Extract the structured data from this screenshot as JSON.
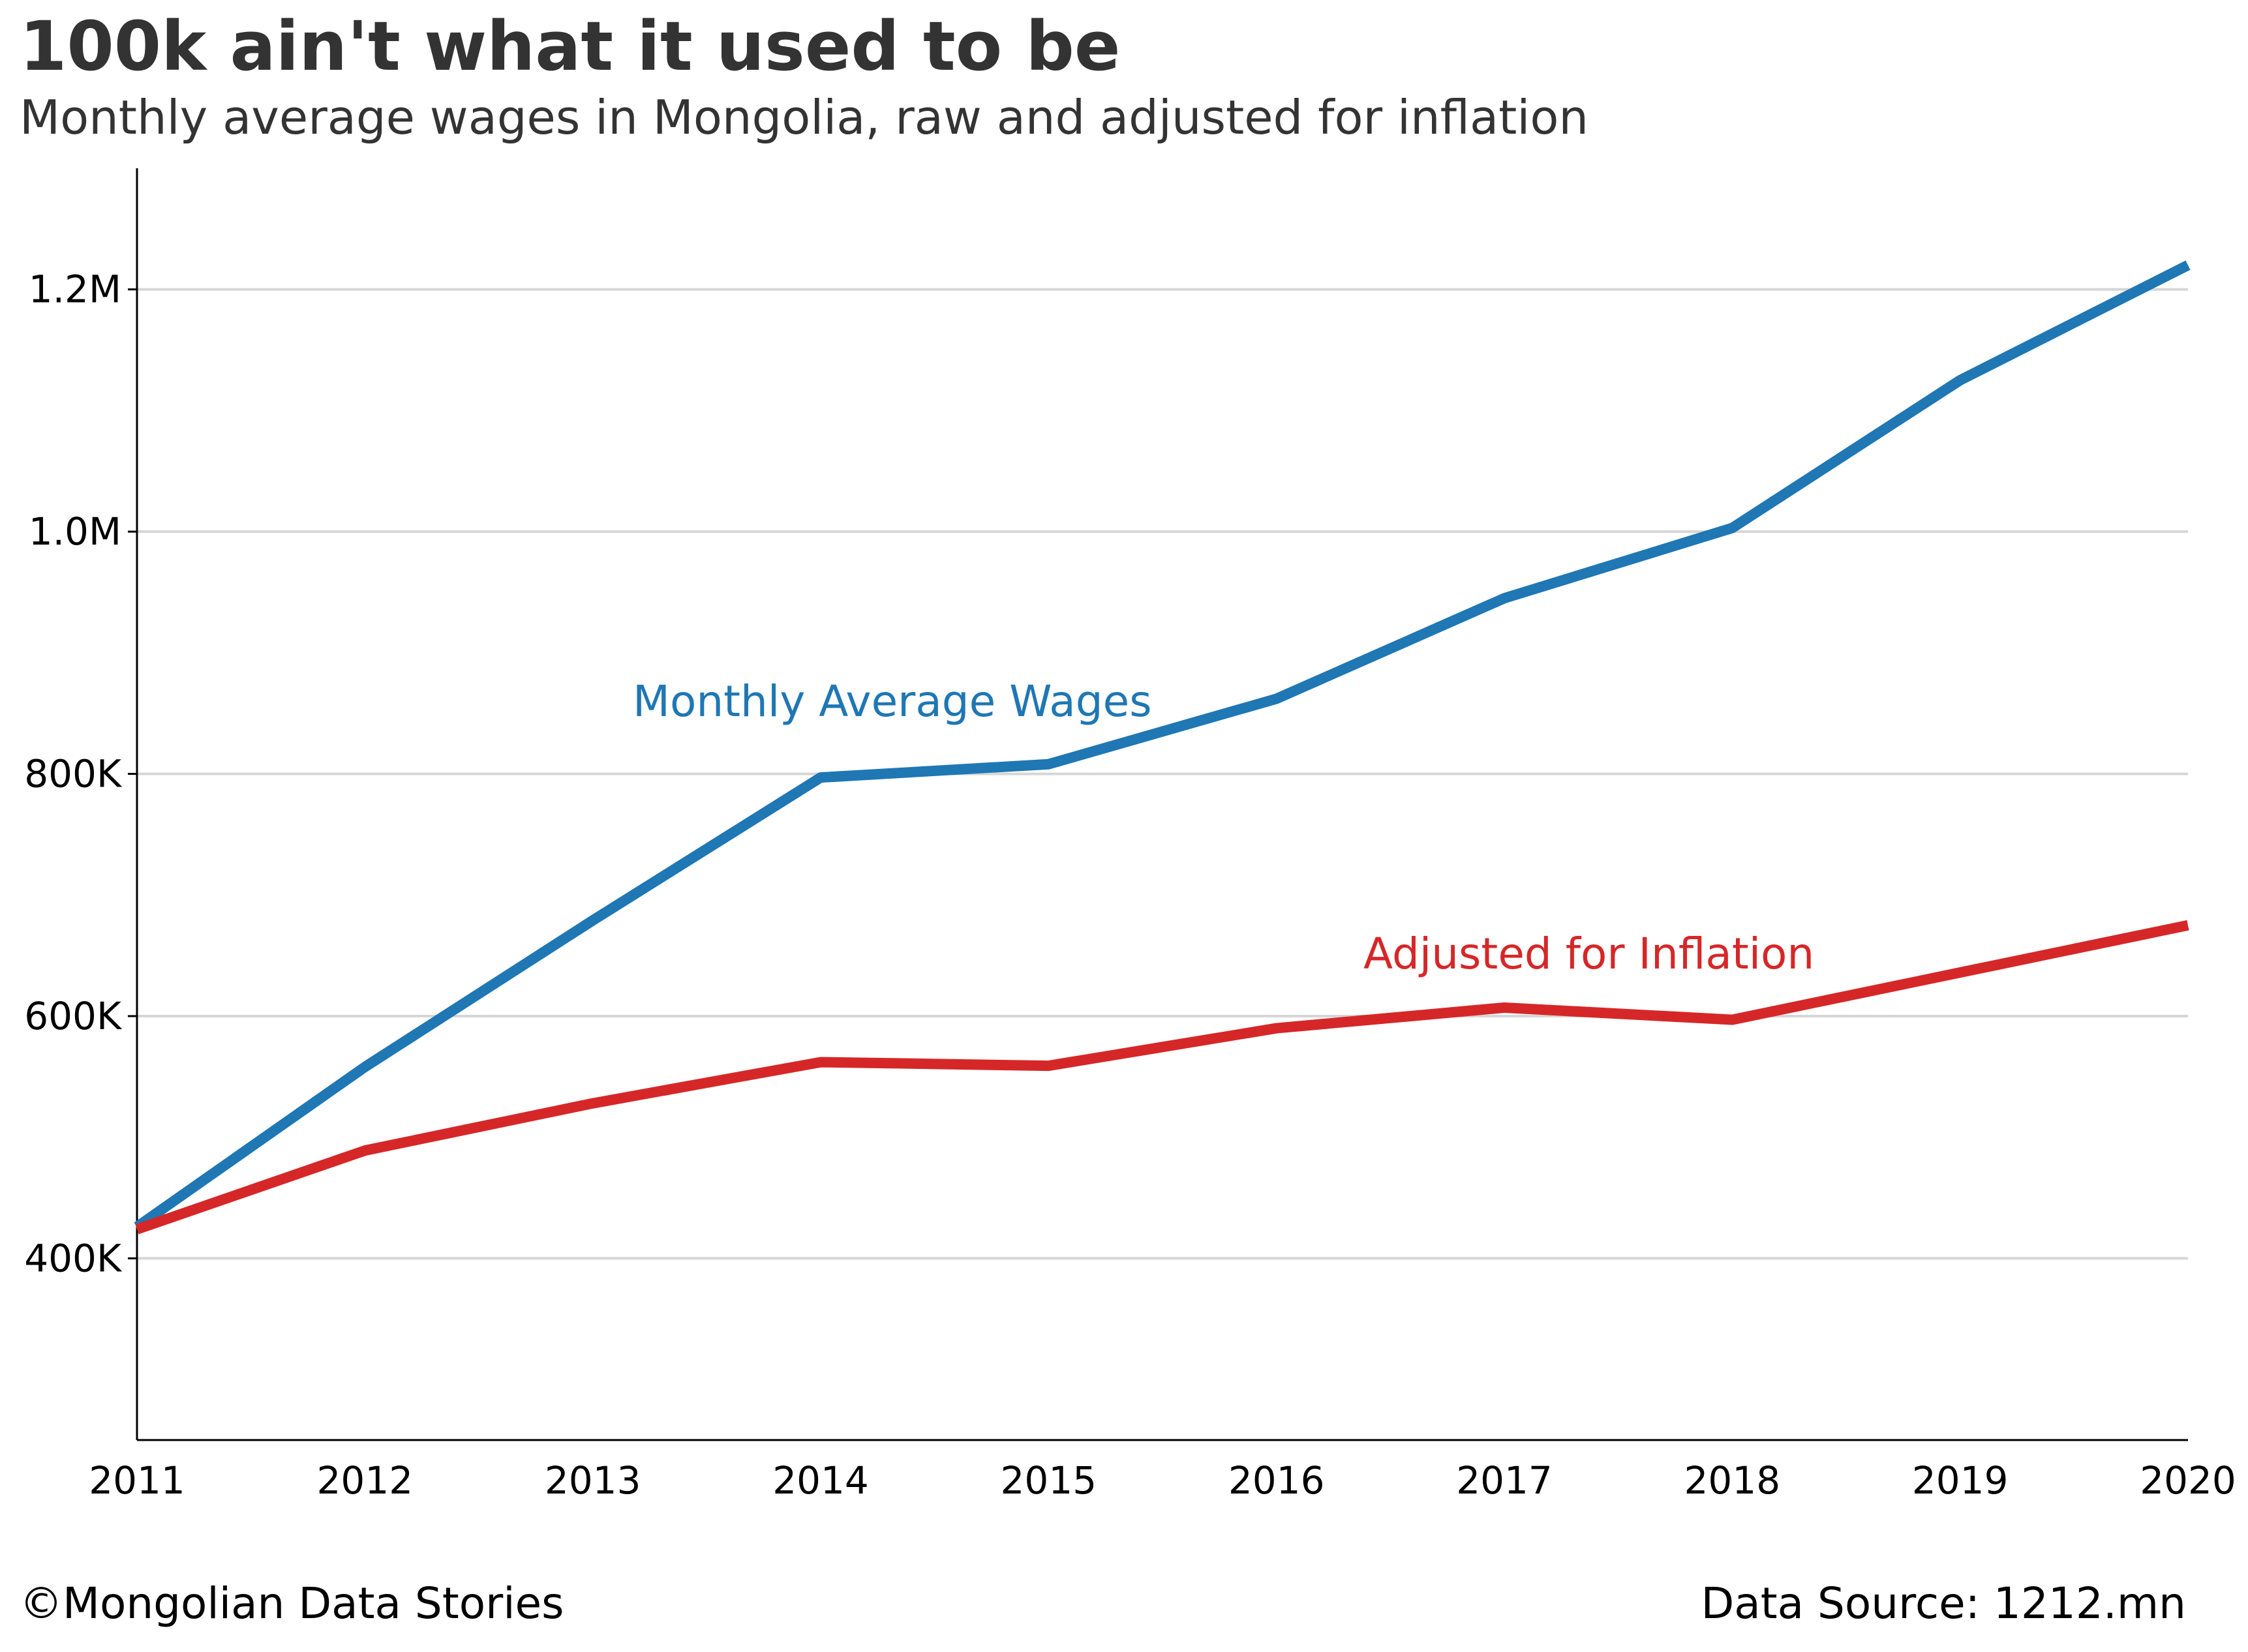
{
  "title": "100k ain't what it used to be",
  "subtitle": "Monthly average wages in Mongolia, raw and adjusted for inflation",
  "footer": {
    "credit": "©Mongolian Data Stories",
    "source": "Data Source: 1212.mn"
  },
  "chart_data": {
    "type": "line",
    "x": [
      2011,
      2012,
      2013,
      2014,
      2015,
      2016,
      2017,
      2018,
      2019,
      2020
    ],
    "x_tick_labels": [
      "2011",
      "2012",
      "2013",
      "2014",
      "2015",
      "2016",
      "2017",
      "2018",
      "2019",
      "2020"
    ],
    "ylim": [
      250000,
      1300000
    ],
    "y_ticks": [
      400000,
      600000,
      800000,
      1000000,
      1200000
    ],
    "y_tick_labels": [
      "400K",
      "600K",
      "800K",
      "1.0M",
      "1.2M"
    ],
    "grid": "horizontal",
    "series": [
      {
        "name": "Monthly Average Wages",
        "color": "#1f77b4",
        "values": [
          426000,
          558000,
          679000,
          797000,
          808000,
          862000,
          945000,
          1003000,
          1125000,
          1220000
        ]
      },
      {
        "name": "Adjusted for Inflation",
        "color": "#d62728",
        "values": [
          424000,
          489000,
          528000,
          562000,
          559000,
          590000,
          607000,
          597000,
          636000,
          675000
        ]
      }
    ]
  }
}
